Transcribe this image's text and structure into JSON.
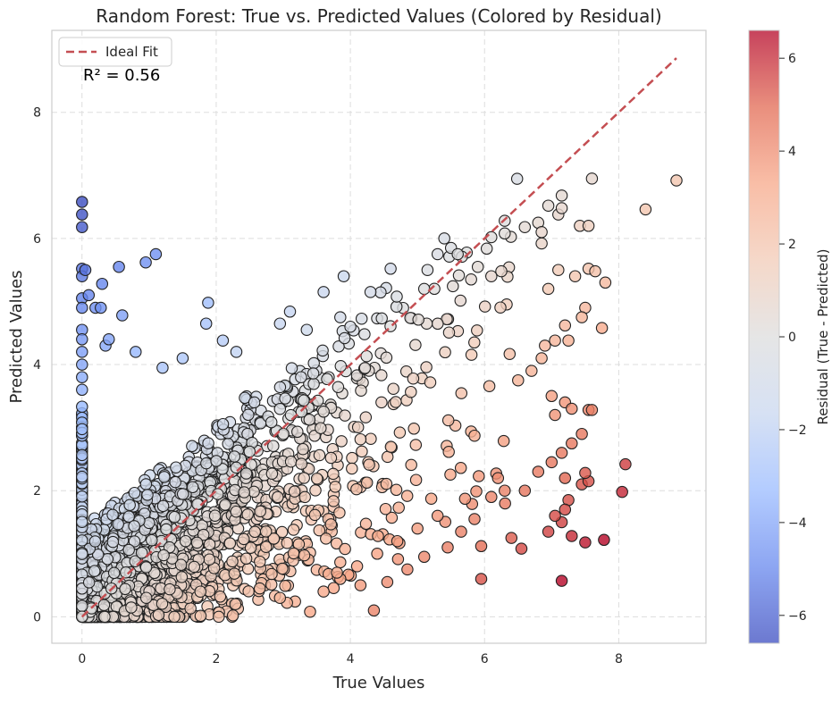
{
  "chart_data": {
    "type": "scatter",
    "title": "Random Forest: True vs. Predicted Values (Colored by Residual)",
    "xlabel": "True Values",
    "ylabel": "Predicted Values",
    "xlim": [
      -0.45,
      9.3
    ],
    "ylim": [
      -0.42,
      9.3
    ],
    "xticks": [
      0,
      2,
      4,
      6,
      8
    ],
    "yticks": [
      0,
      2,
      4,
      6,
      8
    ],
    "grid": true,
    "legend": {
      "position": "top-left",
      "entries": [
        {
          "label": "Ideal Fit",
          "style": "dashed",
          "color": "#c44e52"
        }
      ]
    },
    "ideal_fit": {
      "x": [
        0,
        8.86
      ],
      "y": [
        0,
        8.86
      ]
    },
    "annotation": "R² = 0.56",
    "colorbar": {
      "label": "Residual (True - Predicted)",
      "range": [
        -6.6,
        6.6
      ],
      "ticks": [
        6,
        4,
        2,
        0,
        -2,
        -4,
        -6
      ],
      "tick_labels": [
        "6",
        "4",
        "2",
        "0",
        "−2",
        "−4",
        "−6"
      ],
      "colormap": [
        "#3b4cc0",
        "#6788ee",
        "#9abbff",
        "#c9d7f0",
        "#dddddd",
        "#f2cbb7",
        "#f7a889",
        "#e26952",
        "#b40426"
      ]
    },
    "series": [
      {
        "points": [
          [
            0,
            6.58
          ],
          [
            0,
            6.38
          ],
          [
            0,
            6.18
          ],
          [
            0,
            5.52
          ],
          [
            0,
            5.4
          ],
          [
            0,
            5.05
          ],
          [
            0,
            4.9
          ],
          [
            0,
            4.55
          ],
          [
            0,
            4.4
          ],
          [
            0,
            4.2
          ],
          [
            0,
            4.0
          ],
          [
            0,
            3.8
          ],
          [
            0,
            3.6
          ],
          [
            0.05,
            5.5
          ],
          [
            0.1,
            5.1
          ],
          [
            0.2,
            4.9
          ],
          [
            0.28,
            4.9
          ],
          [
            0.3,
            5.28
          ],
          [
            0.35,
            4.3
          ],
          [
            0.4,
            4.4
          ],
          [
            0.55,
            5.55
          ],
          [
            0.6,
            4.78
          ],
          [
            0.95,
            5.62
          ],
          [
            1.1,
            5.75
          ],
          [
            1.88,
            4.98
          ],
          [
            1.85,
            4.65
          ],
          [
            2.1,
            4.38
          ],
          [
            2.3,
            4.2
          ],
          [
            1.5,
            4.1
          ],
          [
            1.2,
            3.95
          ],
          [
            0.8,
            4.2
          ],
          [
            3.1,
            4.84
          ],
          [
            2.95,
            4.65
          ],
          [
            3.35,
            4.55
          ],
          [
            3.6,
            5.15
          ],
          [
            3.9,
            5.4
          ],
          [
            4.3,
            5.15
          ],
          [
            4.6,
            5.52
          ],
          [
            4.0,
            4.6
          ],
          [
            3.85,
            4.75
          ],
          [
            5.1,
            5.2
          ],
          [
            5.15,
            5.5
          ],
          [
            5.3,
            5.75
          ],
          [
            5.4,
            6.0
          ],
          [
            5.5,
            5.85
          ],
          [
            5.6,
            5.75
          ],
          [
            5.9,
            5.55
          ],
          [
            5.8,
            5.35
          ],
          [
            6.1,
            5.4
          ],
          [
            6.25,
            5.48
          ],
          [
            6.1,
            6.02
          ],
          [
            6.3,
            6.08
          ],
          [
            6.3,
            6.28
          ],
          [
            6.6,
            6.18
          ],
          [
            6.8,
            6.25
          ],
          [
            6.85,
            6.1
          ],
          [
            6.95,
            6.52
          ],
          [
            6.85,
            5.92
          ],
          [
            7.1,
            6.38
          ],
          [
            7.15,
            6.48
          ],
          [
            7.15,
            6.68
          ],
          [
            7.42,
            6.2
          ],
          [
            7.55,
            6.2
          ],
          [
            7.6,
            6.95
          ],
          [
            8.4,
            6.46
          ],
          [
            8.86,
            6.92
          ],
          [
            6.95,
            5.2
          ],
          [
            7.1,
            5.5
          ],
          [
            7.35,
            5.4
          ],
          [
            7.55,
            5.52
          ],
          [
            7.65,
            5.48
          ],
          [
            7.8,
            5.3
          ],
          [
            7.75,
            4.58
          ],
          [
            7.5,
            4.9
          ],
          [
            7.45,
            4.75
          ],
          [
            7.2,
            4.62
          ],
          [
            7.05,
            4.38
          ],
          [
            7.25,
            4.38
          ],
          [
            6.9,
            4.3
          ],
          [
            6.85,
            4.1
          ],
          [
            6.7,
            3.9
          ],
          [
            6.5,
            3.75
          ],
          [
            7.0,
            3.5
          ],
          [
            7.2,
            3.4
          ],
          [
            7.3,
            3.3
          ],
          [
            7.05,
            3.2
          ],
          [
            7.55,
            3.28
          ],
          [
            7.6,
            3.28
          ],
          [
            7.45,
            2.9
          ],
          [
            7.3,
            2.75
          ],
          [
            7.15,
            2.6
          ],
          [
            7.0,
            2.45
          ],
          [
            6.8,
            2.3
          ],
          [
            7.2,
            2.2
          ],
          [
            7.45,
            2.1
          ],
          [
            7.55,
            2.15
          ],
          [
            7.5,
            2.28
          ],
          [
            8.1,
            2.42
          ],
          [
            8.05,
            1.98
          ],
          [
            7.25,
            1.85
          ],
          [
            7.2,
            1.7
          ],
          [
            7.15,
            1.5
          ],
          [
            7.05,
            1.6
          ],
          [
            6.95,
            1.35
          ],
          [
            7.3,
            1.28
          ],
          [
            7.5,
            1.18
          ],
          [
            7.78,
            1.22
          ],
          [
            7.15,
            0.57
          ],
          [
            6.55,
            1.08
          ],
          [
            6.4,
            1.25
          ],
          [
            5.95,
            1.12
          ],
          [
            5.95,
            0.6
          ],
          [
            6.1,
            1.9
          ],
          [
            6.3,
            2.0
          ],
          [
            6.6,
            2.0
          ],
          [
            6.2,
            2.2
          ],
          [
            4.35,
            0.1
          ],
          [
            3.4,
            0.08
          ],
          [
            2.95,
            0.3
          ],
          [
            2.65,
            0.45
          ],
          [
            2.25,
            0.02
          ],
          [
            3.6,
            0.4
          ],
          [
            3.85,
            0.6
          ],
          [
            4.15,
            0.5
          ],
          [
            4.55,
            0.55
          ],
          [
            4.85,
            0.75
          ],
          [
            5.1,
            0.95
          ],
          [
            5.45,
            1.1
          ],
          [
            5.65,
            1.35
          ],
          [
            5.85,
            1.55
          ],
          [
            5.3,
            1.6
          ],
          [
            5.0,
            1.4
          ],
          [
            4.7,
            1.2
          ],
          [
            4.4,
            1.0
          ],
          [
            4.1,
            0.8
          ],
          [
            3.8,
            0.7
          ]
        ],
        "cloud_seed": 7,
        "cloud_count": 2600
      }
    ]
  }
}
